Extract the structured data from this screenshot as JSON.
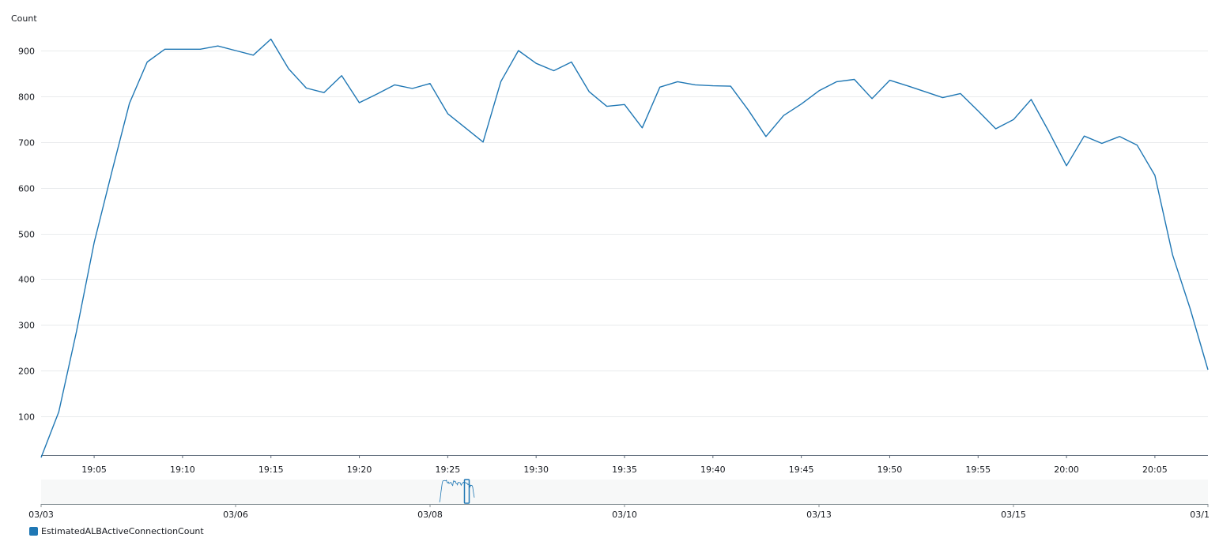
{
  "chart_data": {
    "type": "line",
    "ylabel": "Count",
    "yticks": [
      100,
      200,
      300,
      400,
      500,
      600,
      700,
      800,
      900
    ],
    "ylim": [
      10,
      950
    ],
    "x_tick_labels": [
      "19:05",
      "19:10",
      "19:15",
      "19:20",
      "19:25",
      "19:30",
      "19:35",
      "19:40",
      "19:45",
      "19:50",
      "19:55",
      "20:00",
      "20:05"
    ],
    "x_start": "19:02",
    "x_end": "20:08",
    "grid": true,
    "legend_position": "bottom-left",
    "series": [
      {
        "name": "EstimatedALBActiveConnectionCount",
        "color": "#1f77b4",
        "x": [
          "19:02",
          "19:03",
          "19:04",
          "19:05",
          "19:06",
          "19:07",
          "19:08",
          "19:09",
          "19:10",
          "19:11",
          "19:12",
          "19:13",
          "19:14",
          "19:15",
          "19:16",
          "19:17",
          "19:18",
          "19:19",
          "19:20",
          "19:21",
          "19:22",
          "19:23",
          "19:24",
          "19:25",
          "19:26",
          "19:27",
          "19:28",
          "19:29",
          "19:30",
          "19:31",
          "19:32",
          "19:33",
          "19:34",
          "19:35",
          "19:36",
          "19:37",
          "19:38",
          "19:39",
          "19:40",
          "19:41",
          "19:42",
          "19:43",
          "19:44",
          "19:45",
          "19:46",
          "19:47",
          "19:48",
          "19:49",
          "19:50",
          "19:51",
          "19:52",
          "19:53",
          "19:54",
          "19:55",
          "19:56",
          "19:57",
          "19:58",
          "19:59",
          "20:00",
          "20:01",
          "20:02",
          "20:03",
          "20:04",
          "20:05",
          "20:06",
          "20:07",
          "20:08"
        ],
        "values": [
          10,
          110,
          285,
          480,
          635,
          785,
          875,
          903,
          903,
          903,
          910,
          900,
          890,
          925,
          860,
          818,
          808,
          845,
          786,
          805,
          825,
          817,
          828,
          762,
          731,
          700,
          832,
          900,
          872,
          856,
          875,
          810,
          778,
          782,
          731,
          820,
          832,
          825,
          823,
          822,
          770,
          712,
          758,
          783,
          812,
          832,
          837,
          795,
          835,
          823,
          810,
          797,
          806,
          768,
          729,
          749,
          793,
          723,
          648,
          713,
          697,
          712,
          693,
          627,
          453,
          335,
          202
        ]
      }
    ]
  },
  "navigator": {
    "tick_labels": [
      "03/03",
      "03/06",
      "03/08",
      "03/10",
      "03/13",
      "03/15",
      "03/1"
    ]
  }
}
